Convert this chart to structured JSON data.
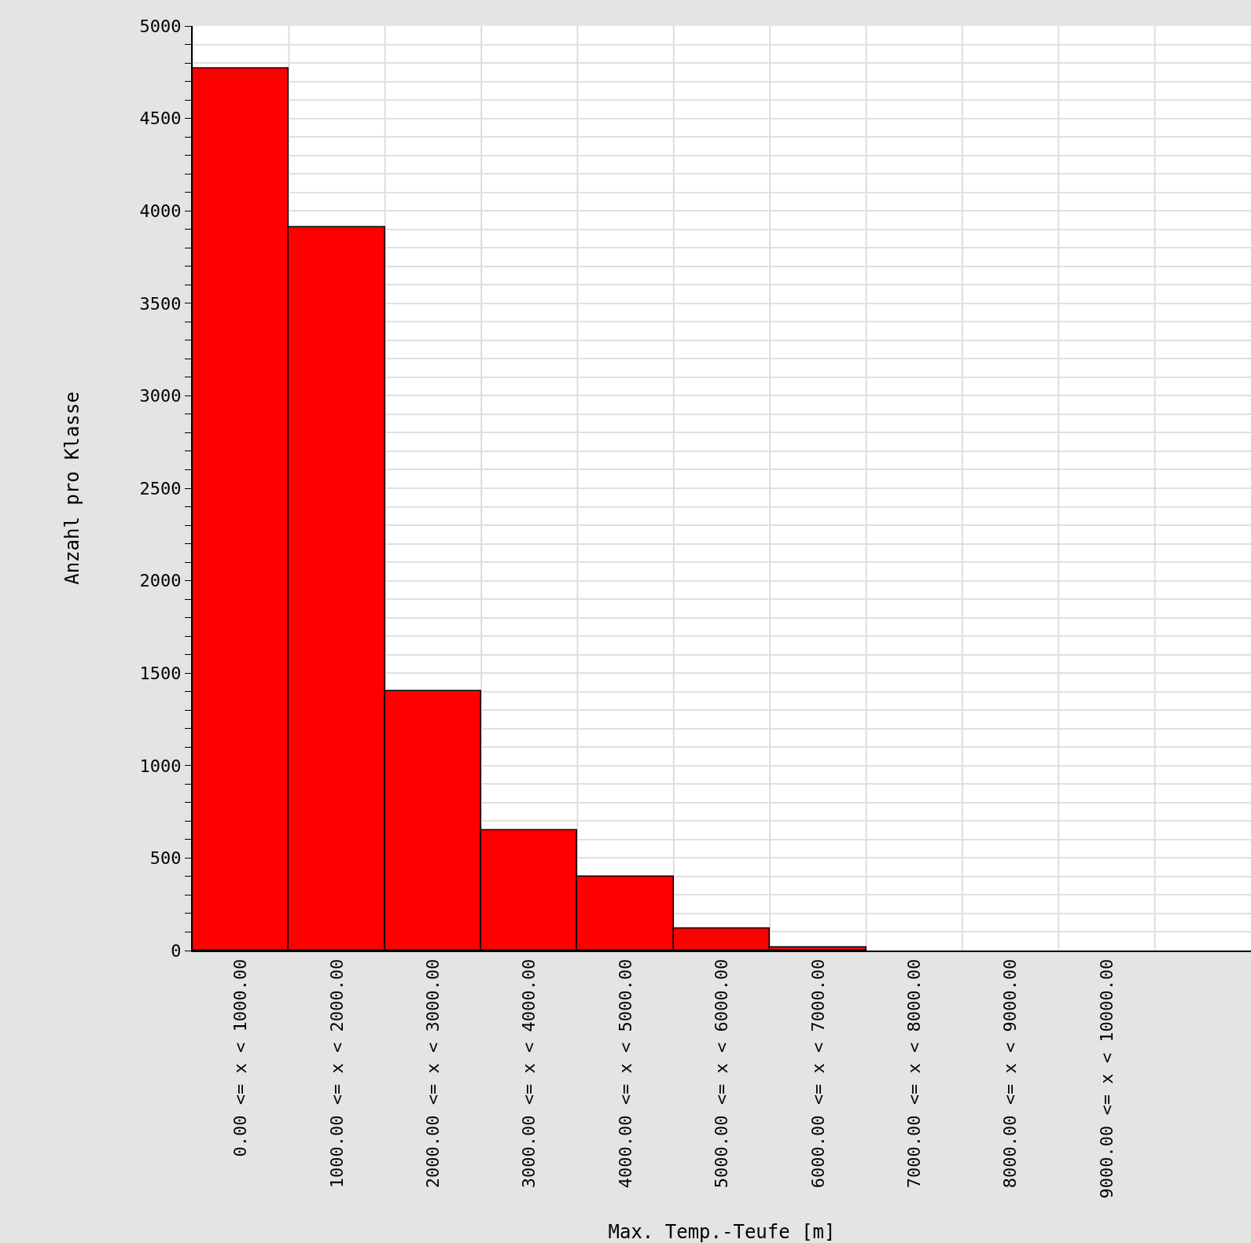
{
  "chart_data": {
    "type": "bar",
    "xlabel": "Max. Temp.-Teufe [m]",
    "ylabel": "Anzahl pro Klasse",
    "categories": [
      "0.00 <= x < 1000.00",
      "1000.00 <= x < 2000.00",
      "2000.00 <= x < 3000.00",
      "3000.00 <= x < 4000.00",
      "4000.00 <= x < 5000.00",
      "5000.00 <= x < 6000.00",
      "6000.00 <= x < 7000.00",
      "7000.00 <= x < 8000.00",
      "8000.00 <= x < 9000.00",
      "9000.00 <= x < 10000.00"
    ],
    "values": [
      4770,
      3910,
      1405,
      650,
      400,
      120,
      15,
      0,
      0,
      0
    ],
    "color": "#ff0000",
    "ylim": [
      0,
      5000
    ],
    "yticks": [
      0,
      {
        "value": 100,
        "label": null
      },
      {
        "value": 200,
        "label": null
      },
      {
        "value": 300,
        "label": null
      },
      {
        "value": 400,
        "label": null
      },
      500,
      {
        "value": 600,
        "label": null
      },
      {
        "value": 700,
        "label": null
      },
      {
        "value": 800,
        "label": null
      },
      {
        "value": 900,
        "label": null
      },
      1000,
      {
        "value": 1100,
        "label": null
      },
      {
        "value": 1200,
        "label": null
      },
      {
        "value": 1300,
        "label": null
      },
      {
        "value": 1400,
        "label": null
      },
      1500,
      {
        "value": 1600,
        "label": null
      },
      {
        "value": 1700,
        "label": null
      },
      {
        "value": 1800,
        "label": null
      },
      {
        "value": 1900,
        "label": null
      },
      2000,
      {
        "value": 2100,
        "label": null
      },
      {
        "value": 2200,
        "label": null
      },
      {
        "value": 2300,
        "label": null
      },
      {
        "value": 2400,
        "label": null
      },
      2500,
      {
        "value": 2600,
        "label": null
      },
      {
        "value": 2700,
        "label": null
      },
      {
        "value": 2800,
        "label": null
      },
      {
        "value": 2900,
        "label": null
      },
      3000,
      {
        "value": 3100,
        "label": null
      },
      {
        "value": 3200,
        "label": null
      },
      {
        "value": 3300,
        "label": null
      },
      {
        "value": 3400,
        "label": null
      },
      3500,
      {
        "value": 3600,
        "label": null
      },
      {
        "value": 3700,
        "label": null
      },
      {
        "value": 3800,
        "label": null
      },
      {
        "value": 3900,
        "label": null
      },
      4000,
      {
        "value": 4100,
        "label": null
      },
      {
        "value": 4200,
        "label": null
      },
      {
        "value": 4300,
        "label": null
      },
      {
        "value": 4400,
        "label": null
      },
      4500,
      {
        "value": 4600,
        "label": null
      },
      {
        "value": 4700,
        "label": null
      },
      {
        "value": 4800,
        "label": null
      },
      {
        "value": 4900,
        "label": null
      },
      5000
    ],
    "grid": true
  }
}
